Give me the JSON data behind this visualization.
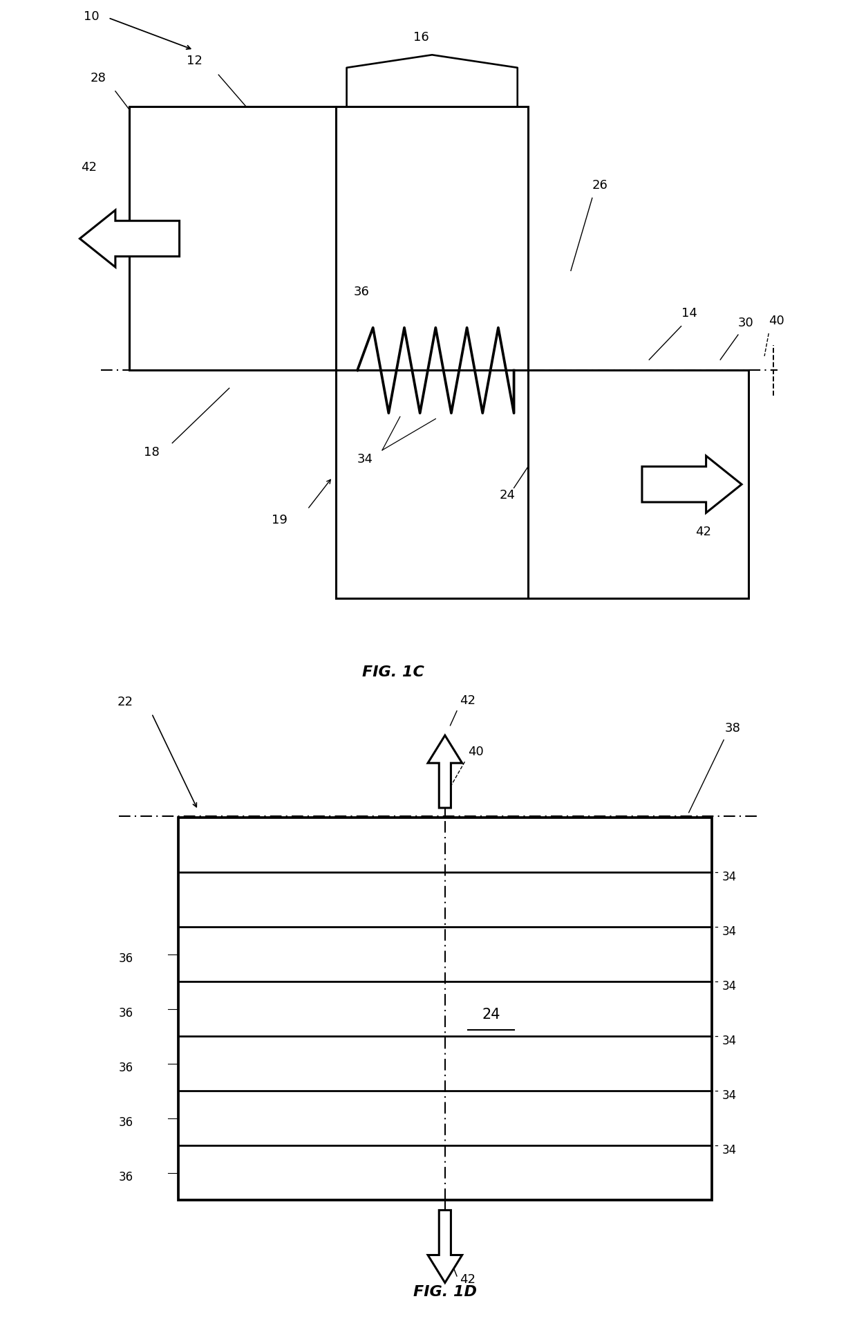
{
  "fig_label_1c": "FIG. 1C",
  "fig_label_1d": "FIG. 1D",
  "label_10": "10",
  "label_12": "12",
  "label_14": "14",
  "label_16": "16",
  "label_18": "18",
  "label_19": "19",
  "label_22": "22",
  "label_24": "24",
  "label_26": "26",
  "label_28": "28",
  "label_30": "30",
  "label_34": "34",
  "label_36": "36",
  "label_38": "38",
  "label_40": "40",
  "label_42": "42",
  "line_color": "#000000",
  "bg_color": "#ffffff",
  "lw": 2.2,
  "fontsize": 13
}
